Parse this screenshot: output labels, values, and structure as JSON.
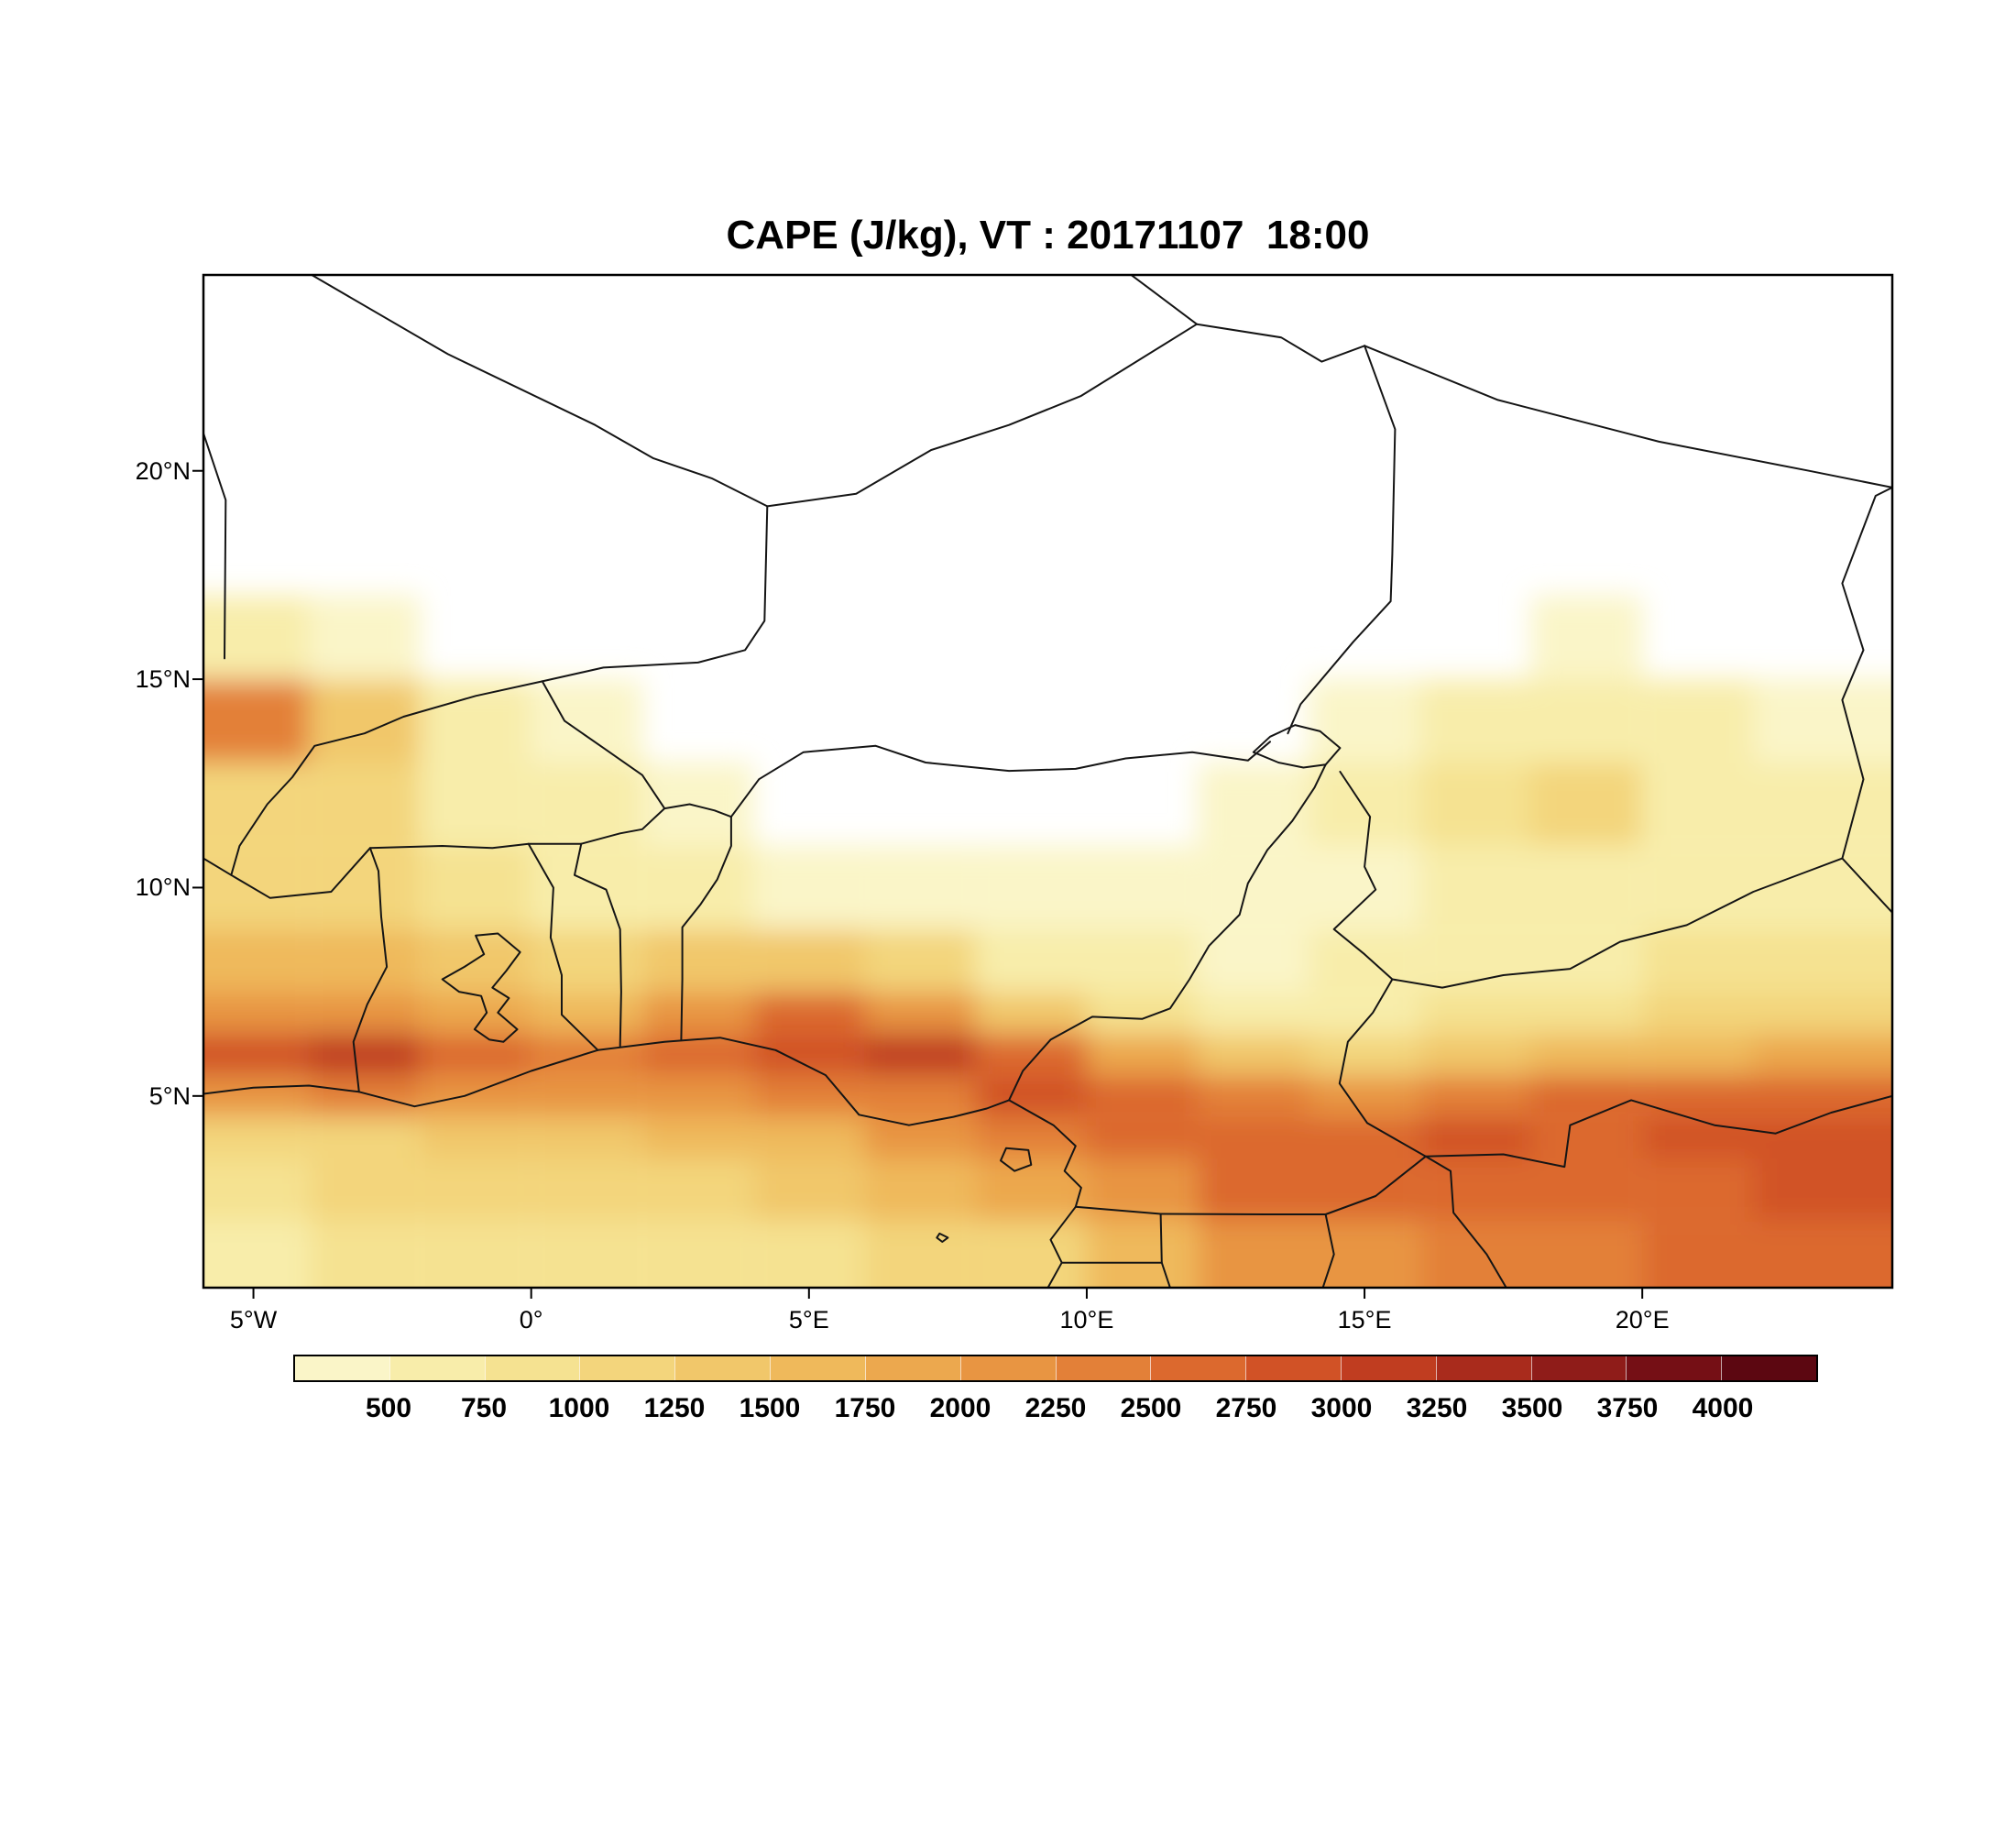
{
  "chart_data": {
    "type": "heatmap",
    "title": "CAPE (J/kg), VT : 20171107  18:00",
    "variable": "CAPE",
    "units": "J/kg",
    "valid_time_label": "VT : 20171107 18:00",
    "xlabel": "",
    "ylabel": "",
    "lon_range": [
      -5.9,
      24.5
    ],
    "lat_range": [
      0.4,
      24.7
    ],
    "x_ticks": [
      {
        "label": "5°W",
        "lon": -5
      },
      {
        "label": "0°",
        "lon": 0
      },
      {
        "label": "5°E",
        "lon": 5
      },
      {
        "label": "10°E",
        "lon": 10
      },
      {
        "label": "15°E",
        "lon": 15
      },
      {
        "label": "20°E",
        "lon": 20
      }
    ],
    "y_ticks": [
      {
        "label": "20°N",
        "lat": 20
      },
      {
        "label": "15°N",
        "lat": 15
      },
      {
        "label": "10°N",
        "lat": 10
      },
      {
        "label": "5°N",
        "lat": 5
      }
    ],
    "colorbar": {
      "levels": [
        500,
        750,
        1000,
        1250,
        1500,
        1750,
        2000,
        2250,
        2500,
        2750,
        3000,
        3250,
        3500,
        3750,
        4000
      ],
      "colors": [
        "#faf5c8",
        "#f8edaa",
        "#f5e291",
        "#f3d57c",
        "#f1c76a",
        "#efb95b",
        "#eca84e",
        "#e89542",
        "#e38038",
        "#dc692e",
        "#d15226",
        "#c03d20",
        "#a92b1c",
        "#8f1c19",
        "#750f15",
        "#5c0711"
      ],
      "orientation": "horizontal"
    },
    "grid": {
      "description": "Estimated CAPE (J/kg) read from the shaded field; rows listed south to north; 0 = white (no CAPE shading).",
      "lon_edges": [
        -5.9,
        -4,
        -2,
        0,
        2,
        4,
        6,
        8,
        10,
        12,
        14,
        16,
        18,
        20,
        22,
        24.5
      ],
      "rows": [
        {
          "lat_min": 0.4,
          "lat_max": 2.0,
          "values": [
            700,
            800,
            800,
            800,
            900,
            900,
            1000,
            1200,
            1600,
            2000,
            2200,
            2300,
            2400,
            2500,
            2600
          ]
        },
        {
          "lat_min": 2.0,
          "lat_max": 3.5,
          "values": [
            900,
            1000,
            1000,
            1100,
            1200,
            1400,
            1500,
            1800,
            2200,
            2500,
            2500,
            2600,
            2600,
            2700,
            2800
          ]
        },
        {
          "lat_min": 3.5,
          "lat_max": 4.5,
          "values": [
            1100,
            1200,
            1300,
            1400,
            1500,
            1700,
            2000,
            2300,
            2600,
            2700,
            2700,
            2800,
            2700,
            2800,
            2900
          ]
        },
        {
          "lat_min": 4.5,
          "lat_max": 5.5,
          "values": [
            2200,
            2300,
            2200,
            2100,
            2200,
            2300,
            2400,
            2800,
            2600,
            2400,
            2200,
            2400,
            2500,
            2600,
            2700
          ]
        },
        {
          "lat_min": 5.5,
          "lat_max": 6.5,
          "values": [
            2800,
            3000,
            2700,
            2400,
            2500,
            2800,
            3000,
            2500,
            1800,
            1300,
            1200,
            1300,
            1500,
            1700,
            1900
          ]
        },
        {
          "lat_min": 6.5,
          "lat_max": 7.5,
          "values": [
            2000,
            2200,
            1800,
            1700,
            2200,
            2600,
            2200,
            1400,
            900,
            700,
            700,
            800,
            900,
            1000,
            1100
          ]
        },
        {
          "lat_min": 7.5,
          "lat_max": 9.0,
          "values": [
            1500,
            1600,
            1400,
            1200,
            1300,
            1400,
            1100,
            700,
            500,
            400,
            500,
            600,
            700,
            800,
            800
          ]
        },
        {
          "lat_min": 9.0,
          "lat_max": 11.0,
          "values": [
            1000,
            1000,
            900,
            700,
            600,
            400,
            300,
            200,
            200,
            300,
            400,
            600,
            700,
            700,
            700
          ]
        },
        {
          "lat_min": 11.0,
          "lat_max": 13.0,
          "values": [
            1200,
            1000,
            700,
            500,
            300,
            100,
            0,
            0,
            100,
            300,
            500,
            800,
            1000,
            700,
            600
          ]
        },
        {
          "lat_min": 13.0,
          "lat_max": 15.0,
          "values": [
            2400,
            1400,
            700,
            300,
            100,
            0,
            0,
            0,
            0,
            100,
            400,
            600,
            700,
            600,
            400
          ]
        },
        {
          "lat_min": 15.0,
          "lat_max": 17.0,
          "values": [
            600,
            400,
            100,
            0,
            0,
            0,
            0,
            0,
            0,
            0,
            0,
            100,
            200,
            100,
            0
          ]
        },
        {
          "lat_min": 17.0,
          "lat_max": 24.7,
          "values": [
            0,
            0,
            0,
            0,
            0,
            0,
            0,
            0,
            0,
            0,
            0,
            0,
            0,
            0,
            0
          ]
        }
      ]
    }
  }
}
